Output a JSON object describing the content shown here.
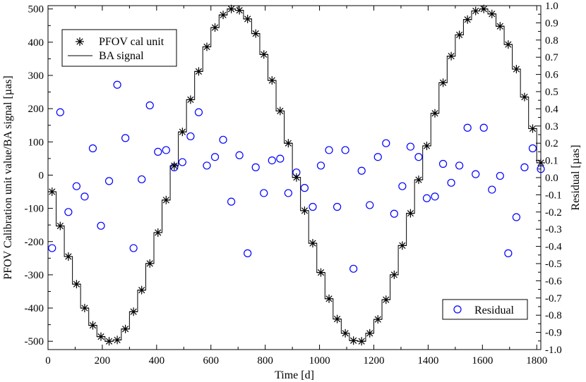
{
  "chart_data": {
    "type": "line",
    "title": "",
    "xlabel": "Time [d]",
    "ylabel": "PFOV Calibration unit value/BA signal [µas]",
    "y2label": "Residual [µas]",
    "xlim": [
      0,
      1815
    ],
    "ylim": [
      -525,
      510
    ],
    "y2lim": [
      -1.0,
      1.0
    ],
    "x_ticks": [
      "0",
      "200",
      "400",
      "600",
      "800",
      "1000",
      "1200",
      "1400",
      "1600",
      "1800"
    ],
    "y_ticks": [
      "-500",
      "-400",
      "-300",
      "-200",
      "-100",
      "0",
      "100",
      "200",
      "300",
      "400",
      "500"
    ],
    "y2_ticks": [
      "-1.0",
      "-0.9",
      "-0.8",
      "-0.7",
      "-0.6",
      "-0.5",
      "-0.4",
      "-0.3",
      "-0.2",
      "-0.1",
      "0.0",
      "0.1",
      "0.2",
      "0.3",
      "0.4",
      "0.5",
      "0.6",
      "0.7",
      "0.8",
      "0.9",
      "1.0"
    ],
    "grid": false,
    "legend_top": {
      "placement": "top-left",
      "entries": [
        "PFOV cal unit",
        "BA signal"
      ]
    },
    "legend_bottom": {
      "placement": "bottom-right",
      "entries": [
        "Residual"
      ]
    },
    "series": [
      {
        "name": "PFOV cal unit",
        "marker": "asterisk",
        "color": "#000000",
        "x": [
          15,
          45,
          75,
          105,
          135,
          165,
          195,
          225,
          255,
          285,
          315,
          345,
          375,
          405,
          435,
          465,
          495,
          525,
          555,
          585,
          615,
          645,
          675,
          705,
          735,
          765,
          795,
          825,
          855,
          885,
          915,
          945,
          975,
          1005,
          1035,
          1065,
          1095,
          1125,
          1155,
          1185,
          1215,
          1245,
          1275,
          1305,
          1335,
          1365,
          1395,
          1425,
          1455,
          1485,
          1515,
          1545,
          1575,
          1605,
          1635,
          1665,
          1695,
          1725,
          1755,
          1785,
          1815
        ],
        "values": [
          -50,
          -153,
          -245,
          -328,
          -400,
          -452,
          -486,
          -500,
          -496,
          -463,
          -411,
          -346,
          -266,
          -173,
          -75,
          28,
          130,
          227,
          312,
          386,
          444,
          482,
          500,
          496,
          470,
          426,
          363,
          285,
          193,
          96,
          -7,
          -107,
          -205,
          -293,
          -372,
          -433,
          -476,
          -498,
          -500,
          -476,
          -434,
          -375,
          -300,
          -212,
          -115,
          -14,
          88,
          186,
          278,
          358,
          422,
          468,
          494,
          500,
          485,
          448,
          393,
          319,
          235,
          140,
          37
        ]
      },
      {
        "name": "BA signal",
        "style": "step",
        "color": "#000000",
        "x": [
          15,
          45,
          75,
          105,
          135,
          165,
          195,
          225,
          255,
          285,
          315,
          345,
          375,
          405,
          435,
          465,
          495,
          525,
          555,
          585,
          615,
          645,
          675,
          705,
          735,
          765,
          795,
          825,
          855,
          885,
          915,
          945,
          975,
          1005,
          1035,
          1065,
          1095,
          1125,
          1155,
          1185,
          1215,
          1245,
          1275,
          1305,
          1335,
          1365,
          1395,
          1425,
          1455,
          1485,
          1515,
          1545,
          1575,
          1605,
          1635,
          1665,
          1695,
          1725,
          1755,
          1785,
          1815
        ],
        "values": [
          -50,
          -153,
          -245,
          -328,
          -400,
          -452,
          -486,
          -500,
          -496,
          -463,
          -411,
          -346,
          -266,
          -173,
          -75,
          28,
          130,
          227,
          312,
          386,
          444,
          482,
          500,
          496,
          470,
          426,
          363,
          285,
          193,
          96,
          -7,
          -107,
          -205,
          -293,
          -372,
          -433,
          -476,
          -498,
          -500,
          -476,
          -434,
          -375,
          -300,
          -212,
          -115,
          -14,
          88,
          186,
          278,
          358,
          422,
          468,
          494,
          500,
          485,
          448,
          393,
          319,
          235,
          140,
          37
        ]
      },
      {
        "name": "Residual",
        "axis": "right",
        "marker": "open-circle",
        "color": "#0000ff",
        "x": [
          15,
          45,
          75,
          105,
          135,
          165,
          195,
          225,
          255,
          285,
          315,
          345,
          375,
          405,
          435,
          465,
          495,
          525,
          555,
          585,
          615,
          645,
          675,
          705,
          735,
          765,
          795,
          825,
          855,
          885,
          915,
          945,
          975,
          1005,
          1035,
          1065,
          1095,
          1125,
          1155,
          1185,
          1215,
          1245,
          1275,
          1305,
          1335,
          1365,
          1395,
          1425,
          1455,
          1485,
          1515,
          1545,
          1575,
          1605,
          1635,
          1665,
          1695,
          1725,
          1755,
          1785,
          1815
        ],
        "values": [
          -0.41,
          0.38,
          -0.2,
          -0.05,
          -0.11,
          0.17,
          -0.28,
          -0.02,
          0.54,
          0.23,
          -0.41,
          -0.01,
          0.42,
          0.15,
          0.16,
          0.06,
          0.09,
          0.24,
          0.38,
          0.07,
          0.12,
          0.22,
          -0.14,
          0.13,
          -0.44,
          0.06,
          -0.09,
          0.1,
          0.11,
          -0.09,
          0.03,
          -0.06,
          -0.17,
          0.07,
          0.16,
          -0.17,
          0.16,
          -0.53,
          0.04,
          -0.16,
          0.12,
          0.2,
          -0.21,
          -0.05,
          0.18,
          0.12,
          -0.12,
          -0.11,
          0.08,
          -0.03,
          0.07,
          0.29,
          0.02,
          0.29,
          -0.07,
          0.01,
          -0.44,
          -0.23,
          0.06,
          0.17,
          0.05
        ]
      }
    ]
  }
}
